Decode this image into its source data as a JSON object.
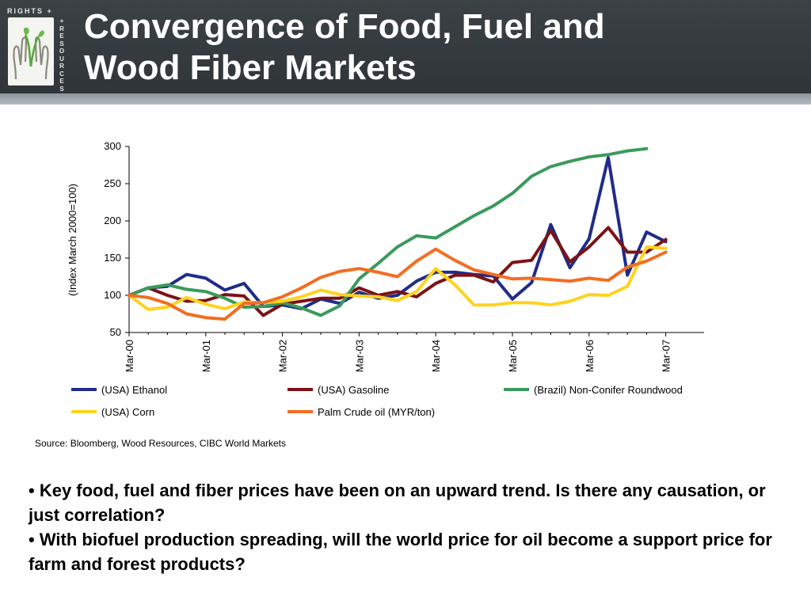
{
  "header": {
    "title_line1": "Convergence of Food, Fuel and",
    "title_line2": "Wood Fiber Markets",
    "logo_top": "RIGHTS +",
    "logo_side": "RESOURCES"
  },
  "chart_data": {
    "type": "line",
    "ylabel": "(Index March 2000=100)",
    "ylim": [
      50,
      300
    ],
    "yticks": [
      50,
      100,
      150,
      200,
      250,
      300
    ],
    "xticks": [
      "Mar-00",
      "Mar-01",
      "Mar-02",
      "Mar-03",
      "Mar-04",
      "Mar-05",
      "Mar-06",
      "Mar-07"
    ],
    "x_points_per_year": 4,
    "grid": false,
    "legend_position": "bottom",
    "series": [
      {
        "name": "(USA) Ethanol",
        "color": "#1f2c8a",
        "values": [
          100,
          110,
          112,
          128,
          123,
          107,
          116,
          85,
          87,
          82,
          95,
          89,
          104,
          96,
          100,
          119,
          131,
          131,
          128,
          126,
          95,
          117,
          195,
          137,
          176,
          285,
          127,
          185,
          172
        ]
      },
      {
        "name": "(USA) Gasoline",
        "color": "#7b1216",
        "values": [
          100,
          110,
          100,
          92,
          93,
          101,
          99,
          73,
          88,
          92,
          96,
          96,
          110,
          100,
          105,
          98,
          116,
          127,
          127,
          118,
          144,
          147,
          187,
          145,
          165,
          191,
          158,
          158,
          175
        ]
      },
      {
        "name": "(Brazil) Non-Conifer Roundwood",
        "color": "#3a9a5c",
        "values": [
          100,
          110,
          114,
          108,
          105,
          96,
          84,
          85,
          90,
          83,
          73,
          86,
          122,
          143,
          165,
          180,
          177,
          192,
          207,
          220,
          237,
          260,
          273,
          280,
          286,
          289,
          294,
          297
        ]
      },
      {
        "name": "(USA) Corn",
        "color": "#ffd21f",
        "values": [
          100,
          81,
          84,
          97,
          88,
          82,
          91,
          90,
          92,
          98,
          107,
          101,
          99,
          98,
          93,
          105,
          136,
          114,
          87,
          87,
          90,
          90,
          87,
          92,
          101,
          100,
          112,
          165,
          163
        ]
      },
      {
        "name": "Palm Crude oil (MYR/ton)",
        "color": "#f36d21",
        "values": [
          100,
          97,
          89,
          75,
          70,
          68,
          89,
          90,
          98,
          110,
          124,
          132,
          136,
          131,
          125,
          146,
          162,
          147,
          134,
          128,
          122,
          123,
          121,
          119,
          123,
          120,
          138,
          146,
          158
        ]
      }
    ]
  },
  "source": "Source: Bloomberg, Wood Resources, CIBC World Markets",
  "bullets": [
    "• Key food, fuel and fiber prices have been on an upward trend. Is there any causation, or just correlation?",
    "• With biofuel production spreading, will the world price for oil become a support price for farm and forest products?"
  ]
}
